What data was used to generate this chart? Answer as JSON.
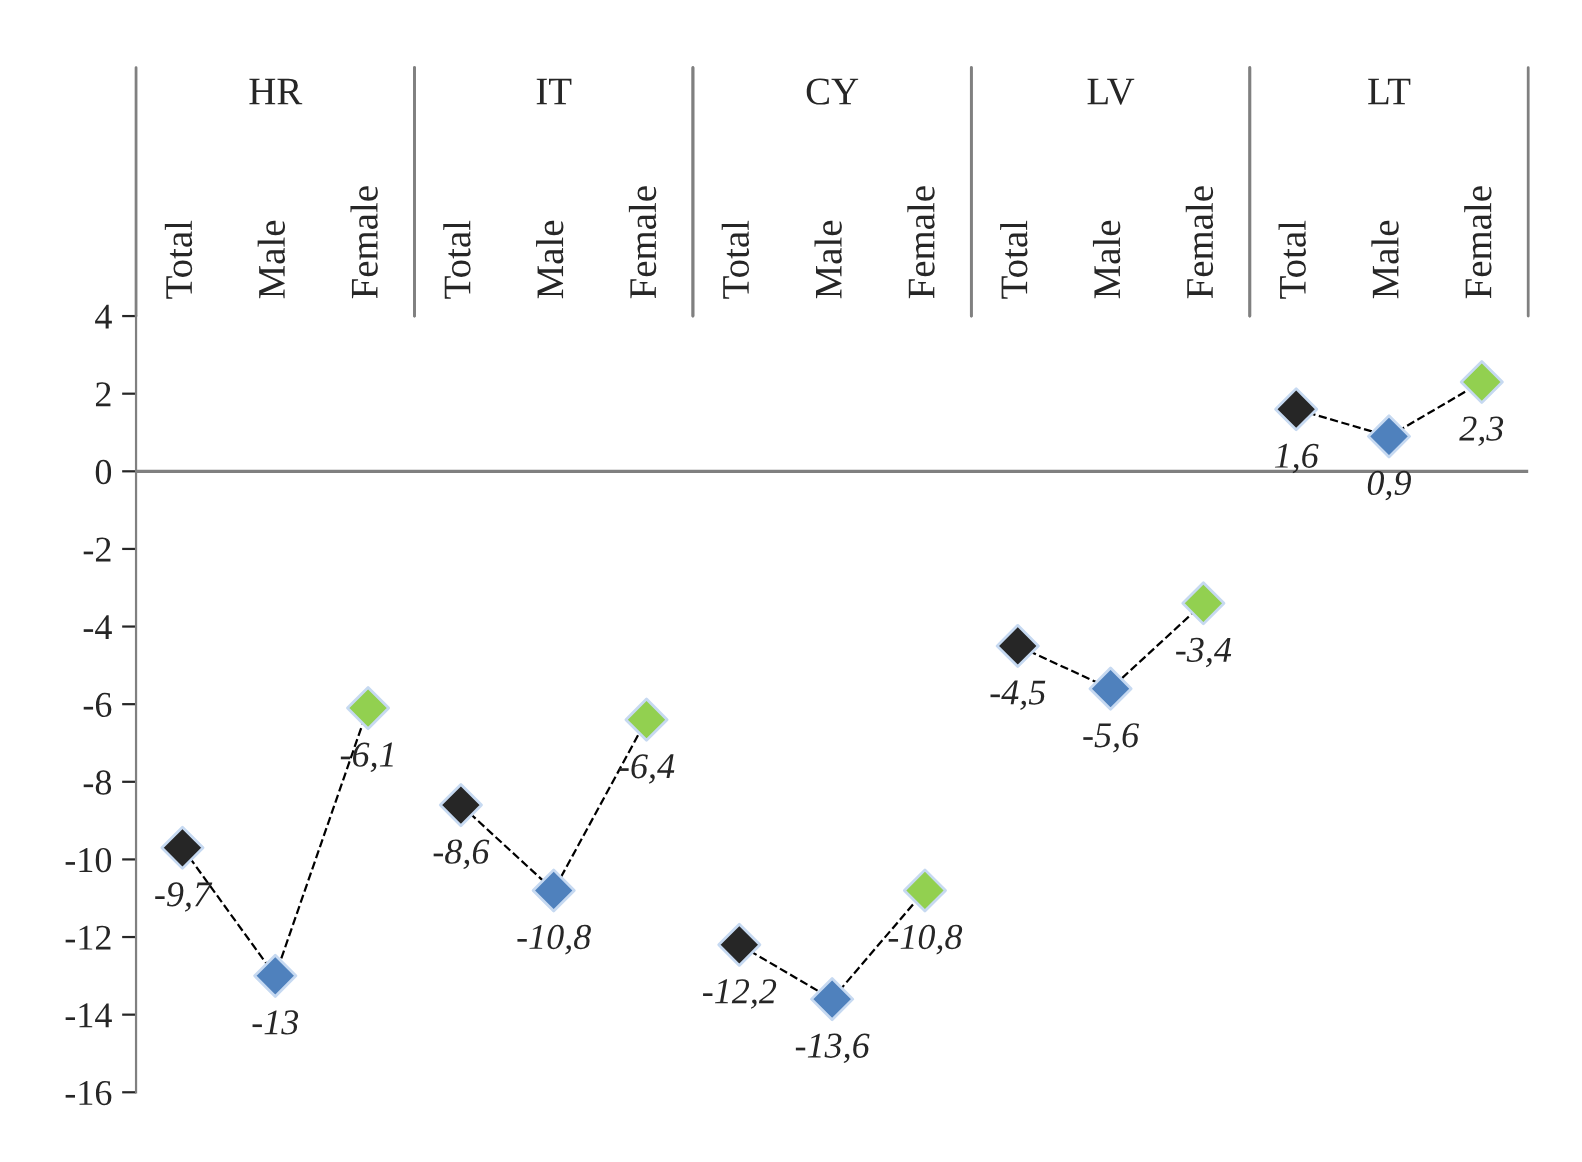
{
  "chart_data": {
    "type": "line",
    "categories": [
      "Total",
      "Male",
      "Female",
      "Total",
      "Male",
      "Female",
      "Total",
      "Male",
      "Female",
      "Total",
      "Male",
      "Female",
      "Total",
      "Male",
      "Female"
    ],
    "series": [
      {
        "color": "#000000",
        "values": [
          -9.7,
          -13,
          -6.1,
          null,
          null,
          null,
          null,
          null,
          null,
          null,
          null,
          null,
          null,
          null,
          null
        ],
        "value_labels": [
          "-9,7",
          "-13",
          "-6,1",
          null,
          null,
          null,
          null,
          null,
          null,
          null,
          null,
          null,
          null,
          null,
          null
        ],
        "colors": [
          "#262626",
          "#4f81bd",
          "#92d050",
          null,
          null,
          null,
          null,
          null,
          null,
          null,
          null,
          null,
          null,
          null,
          null
        ]
      },
      {
        "color": "#000000",
        "values": [
          null,
          null,
          null,
          -8.6,
          -10.8,
          -6.4,
          null,
          null,
          null,
          null,
          null,
          null,
          null,
          null,
          null
        ],
        "value_labels": [
          null,
          null,
          null,
          "-8,6",
          "-10,8",
          "-6,4",
          null,
          null,
          null,
          null,
          null,
          null,
          null,
          null,
          null
        ],
        "colors": [
          null,
          null,
          null,
          "#262626",
          "#4f81bd",
          "#92d050",
          null,
          null,
          null,
          null,
          null,
          null,
          null,
          null,
          null
        ]
      },
      {
        "color": "#000000",
        "values": [
          null,
          null,
          null,
          null,
          null,
          null,
          -12.2,
          -13.6,
          -10.8,
          null,
          null,
          null,
          null,
          null,
          null
        ],
        "value_labels": [
          null,
          null,
          null,
          null,
          null,
          null,
          "-12,2",
          "-13,6",
          "-10,8",
          null,
          null,
          null,
          null,
          null,
          null
        ],
        "colors": [
          null,
          null,
          null,
          null,
          null,
          null,
          "#262626",
          "#4f81bd",
          "#92d050",
          null,
          null,
          null,
          null,
          null,
          null
        ]
      },
      {
        "color": "#000000",
        "values": [
          null,
          null,
          null,
          null,
          null,
          null,
          null,
          null,
          null,
          -4.5,
          -5.6,
          -3.4,
          null,
          null,
          null
        ],
        "value_labels": [
          null,
          null,
          null,
          null,
          null,
          null,
          null,
          null,
          null,
          "-4,5",
          "-5,6",
          "-3,4",
          null,
          null,
          null
        ],
        "colors": [
          null,
          null,
          null,
          null,
          null,
          null,
          null,
          null,
          null,
          "#262626",
          "#4f81bd",
          "#92d050",
          null,
          null,
          null
        ]
      },
      {
        "color": "#000000",
        "values": [
          null,
          null,
          null,
          null,
          null,
          null,
          null,
          null,
          null,
          null,
          null,
          null,
          1.6,
          0.9,
          2.3
        ],
        "value_labels": [
          null,
          null,
          null,
          null,
          null,
          null,
          null,
          null,
          null,
          null,
          null,
          null,
          "1,6",
          "0,9",
          "2,3"
        ],
        "colors": [
          null,
          null,
          null,
          null,
          null,
          null,
          null,
          null,
          null,
          null,
          null,
          null,
          "#262626",
          "#4f81bd",
          "#92d050"
        ]
      }
    ],
    "ylim": [
      -16,
      4
    ],
    "yticks": [
      -16,
      -14,
      -12,
      -10,
      -8,
      -6,
      -4,
      -2,
      0,
      2,
      4
    ],
    "annotations": [
      "HR",
      "IT",
      "CY",
      "LV",
      "LT"
    ],
    "ref_lines": [
      {
        "axis": "y",
        "value": 0,
        "color": "#808080"
      }
    ],
    "marker": "diamond",
    "line_style": "dashed",
    "grid": false,
    "legend": false
  }
}
